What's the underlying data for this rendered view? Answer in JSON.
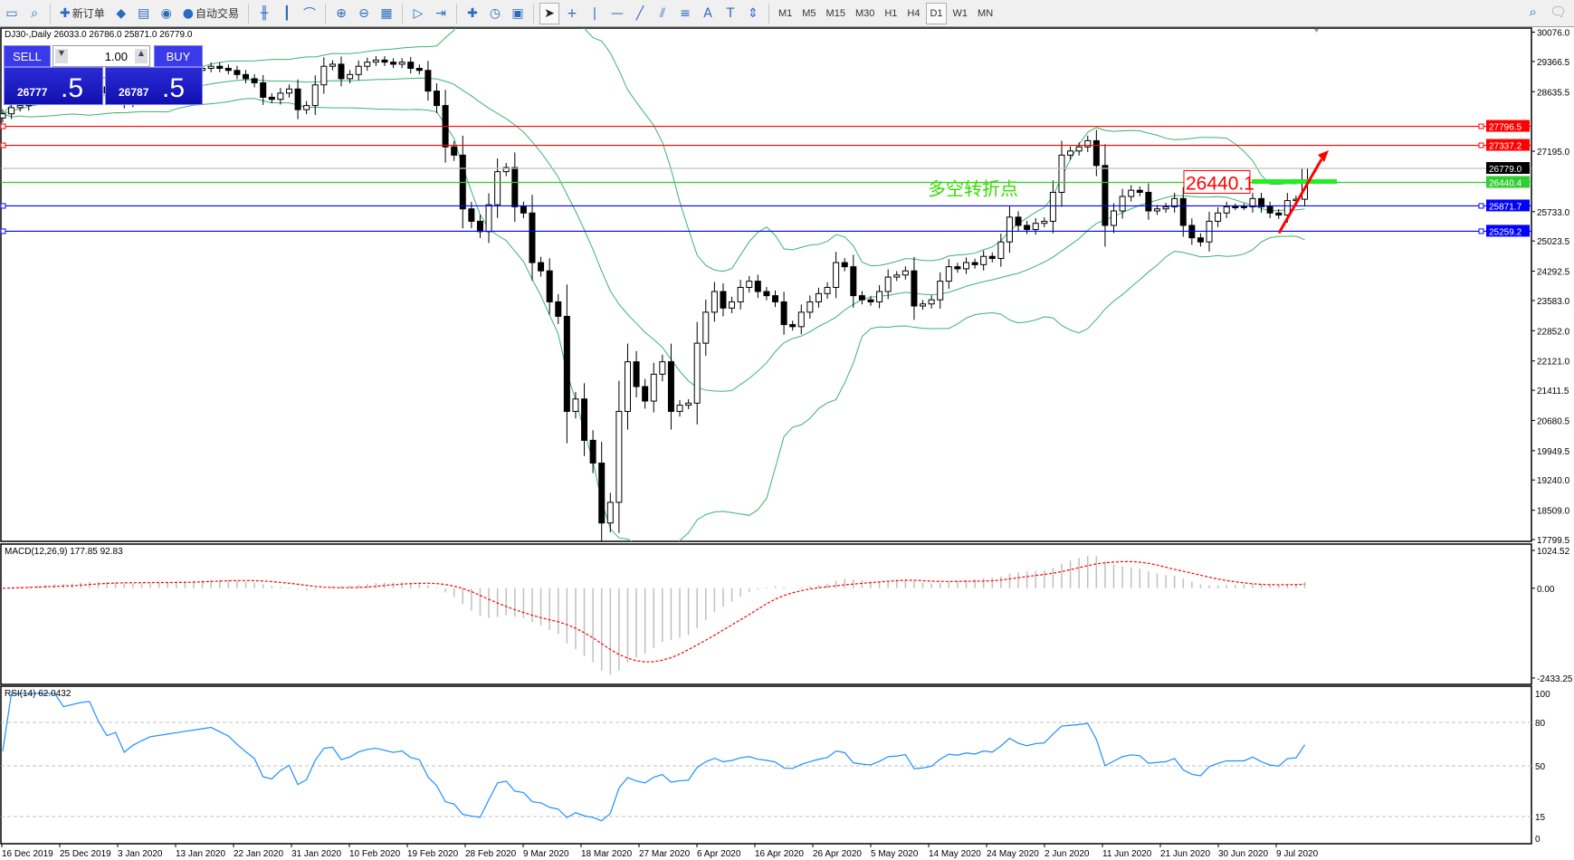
{
  "toolbar": {
    "buttons": [
      {
        "icon": "window-icon"
      },
      {
        "icon": "zoom-window-icon"
      },
      {
        "icon": "new-order-icon",
        "label": "新订单"
      },
      {
        "icon": "history-icon"
      },
      {
        "icon": "terminal-icon"
      },
      {
        "icon": "signal-icon"
      },
      {
        "icon": "autotrading-icon",
        "label": "自动交易"
      },
      {
        "icon": "bar-chart-icon"
      },
      {
        "icon": "candlestick-icon"
      },
      {
        "icon": "line-chart-icon"
      },
      {
        "icon": "zoom-in-icon"
      },
      {
        "icon": "zoom-out-icon"
      },
      {
        "icon": "tile-icon"
      },
      {
        "icon": "autoscroll-icon"
      },
      {
        "icon": "chart-shift-icon"
      },
      {
        "icon": "indicators-icon"
      },
      {
        "icon": "periods-icon"
      },
      {
        "icon": "templates-icon"
      },
      {
        "icon": "cursor-icon"
      },
      {
        "icon": "crosshair-icon"
      },
      {
        "icon": "vertical-line-icon"
      },
      {
        "icon": "horizontal-line-icon"
      },
      {
        "icon": "trendline-icon"
      },
      {
        "icon": "channel-icon"
      },
      {
        "icon": "fibonacci-icon"
      },
      {
        "icon": "text-icon",
        "label": "A"
      },
      {
        "icon": "text-label-icon",
        "label": "T"
      },
      {
        "icon": "arrows-icon"
      }
    ],
    "timeframes": [
      "M1",
      "M5",
      "M15",
      "M30",
      "H1",
      "H4",
      "D1",
      "W1",
      "MN"
    ],
    "selected_timeframe": "D1"
  },
  "chart_header": "DJ30-,Daily  26033.0 26786.0 25871.0 26779.0",
  "trade_panel": {
    "sell_label": "SELL",
    "buy_label": "BUY",
    "lot": "1.00",
    "sell_main": "26777",
    "sell_big": ".5",
    "buy_main": "26787",
    "buy_big": ".5"
  },
  "chart_data": {
    "type": "candlestick",
    "symbol": "DJ30-",
    "timeframe": "Daily",
    "last_bar": {
      "open": 26033.0,
      "high": 26786.0,
      "low": 25871.0,
      "close": 26779.0
    },
    "close": [
      28100,
      28250,
      28300,
      28450,
      28500,
      28550,
      28600,
      28550,
      28650,
      28800,
      28900,
      28750,
      28600,
      28700,
      28400,
      28600,
      28750,
      28900,
      28950,
      29000,
      29050,
      29100,
      29150,
      29200,
      29250,
      29200,
      29150,
      29050,
      28950,
      28850,
      28500,
      28450,
      28600,
      28700,
      28200,
      28300,
      28800,
      29250,
      29300,
      28950,
      29050,
      29250,
      29350,
      29400,
      29350,
      29300,
      29350,
      29200,
      29150,
      28650,
      28300,
      27300,
      27100,
      25800,
      25500,
      25250,
      25900,
      26700,
      26800,
      25850,
      25700,
      24500,
      24300,
      23550,
      23200,
      20900,
      21200,
      20200,
      19650,
      18200,
      18700,
      20900,
      22100,
      21500,
      21150,
      21800,
      22100,
      20900,
      21050,
      21100,
      22550,
      23300,
      23800,
      23400,
      23550,
      23900,
      24050,
      23800,
      23700,
      23550,
      23000,
      22950,
      23300,
      23550,
      23750,
      23900,
      24500,
      24400,
      23700,
      23600,
      23550,
      23800,
      24150,
      24200,
      24300,
      23450,
      23500,
      23600,
      24050,
      24400,
      24350,
      24500,
      24450,
      24650,
      24600,
      25000,
      25600,
      25400,
      25300,
      25450,
      25500,
      26200,
      27100,
      27200,
      27300,
      27450,
      26850,
      25400,
      25750,
      26100,
      26250,
      26200,
      25750,
      25800,
      25850,
      26050,
      25400,
      25100,
      25000,
      25500,
      25700,
      25850,
      25850,
      25850,
      26050,
      25850,
      25700,
      25650,
      26000,
      26033,
      26779
    ],
    "price_axis": {
      "max": 30076.0,
      "min": 17799.5,
      "ticks": [
        "30076.0",
        "29366.5",
        "28635.5",
        "27195.0",
        "25733.0",
        "25023.5",
        "24292.5",
        "23583.0",
        "22852.0",
        "22121.0",
        "21411.5",
        "20680.5",
        "19949.5",
        "19240.0",
        "18509.0",
        "17799.5"
      ]
    },
    "date_ticks": [
      "16 Dec 2019",
      "25 Dec 2019",
      "3 Jan 2020",
      "13 Jan 2020",
      "22 Jan 2020",
      "31 Jan 2020",
      "10 Feb 2020",
      "19 Feb 2020",
      "28 Feb 2020",
      "9 Mar 2020",
      "18 Mar 2020",
      "27 Mar 2020",
      "6 Apr 2020",
      "16 Apr 2020",
      "26 Apr 2020",
      "5 May 2020",
      "14 May 2020",
      "24 May 2020",
      "2 Jun 2020",
      "11 Jun 2020",
      "21 Jun 2020",
      "30 Jun 2020",
      "9 Jul 2020"
    ],
    "bollinger": {
      "period": 20,
      "deviation": 2,
      "color": "#3cb371"
    },
    "hlines": [
      {
        "price": 27796.5,
        "label": "27796.5",
        "color": "#ff0000"
      },
      {
        "price": 27337.2,
        "label": "27337.2",
        "color": "#ff0000"
      },
      {
        "price": 26779.0,
        "label": "26779.0",
        "color": "#c0c0c0",
        "tag": "#000000"
      },
      {
        "price": 26440.4,
        "label": "26440.4",
        "color": "#32cd32"
      },
      {
        "price": 25871.7,
        "label": "25871.7",
        "color": "#0000ff"
      },
      {
        "price": 25259.2,
        "label": "25259.2",
        "color": "#0000ff"
      }
    ],
    "annotations": {
      "text": "多空转折点",
      "text_color": "#33dd00",
      "price_label": "26440.1",
      "price_label_color": "#ff0000",
      "arrow_color": "#ff0000"
    },
    "macd": {
      "label": "MACD(12,26,9) 177.85 92.83",
      "max": 1024.52,
      "min": -2433.25,
      "ticks": [
        "1024.52",
        "0.00",
        "-2433.25"
      ],
      "hist_color": "#c0c0c0",
      "signal_color": "#ff0000"
    },
    "rsi": {
      "label": "RSI(14) 62.0432",
      "max": 100,
      "min": 0,
      "levels": [
        80,
        50,
        15
      ],
      "ticks": [
        "100",
        "80",
        "50",
        "15",
        "0"
      ],
      "color": "#1e90ff"
    }
  }
}
